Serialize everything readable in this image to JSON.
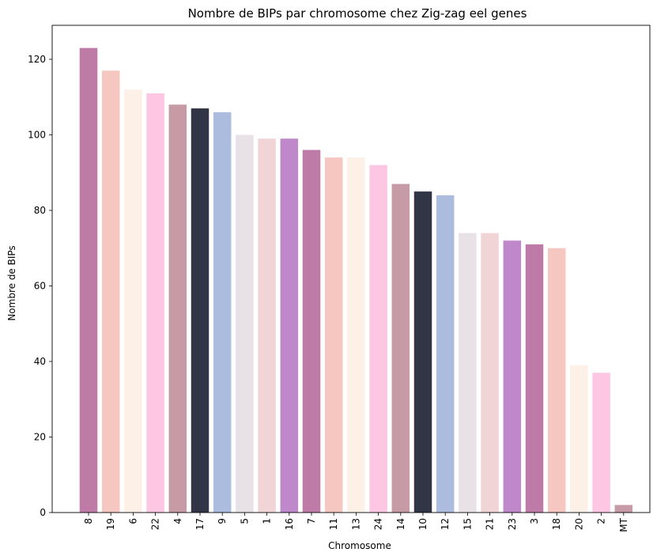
{
  "chart_data": {
    "type": "bar",
    "title": "Nombre de BIPs par chromosome chez Zig-zag eel genes",
    "xlabel": "Chromosome",
    "ylabel": "Nombre de BIPs",
    "categories": [
      "8",
      "19",
      "6",
      "22",
      "4",
      "17",
      "9",
      "5",
      "1",
      "16",
      "7",
      "11",
      "13",
      "24",
      "14",
      "10",
      "12",
      "15",
      "21",
      "23",
      "3",
      "18",
      "20",
      "2",
      "MT"
    ],
    "values": [
      123,
      117,
      112,
      111,
      108,
      107,
      106,
      100,
      99,
      99,
      96,
      94,
      94,
      92,
      87,
      85,
      84,
      74,
      74,
      72,
      71,
      70,
      39,
      37,
      2
    ],
    "colors": [
      "#bf7ba8",
      "#f6c6c0",
      "#fdf0e7",
      "#fdc6e3",
      "#c69ba6",
      "#323546",
      "#abbcdf",
      "#e8e1e6",
      "#f1d5d6",
      "#be88cb",
      "#bf7ba8",
      "#f6c6c0",
      "#fdf0e7",
      "#fdc6e3",
      "#c69ba6",
      "#323546",
      "#abbcdf",
      "#e8e1e6",
      "#f1d5d6",
      "#be88cb",
      "#bf7ba8",
      "#f6c6c0",
      "#fdf0e7",
      "#fdc6e3",
      "#c69ba6"
    ],
    "ylim": [
      0,
      129
    ],
    "yticks": [
      0,
      20,
      40,
      60,
      80,
      100,
      120
    ],
    "grid": false,
    "legend": "none"
  }
}
